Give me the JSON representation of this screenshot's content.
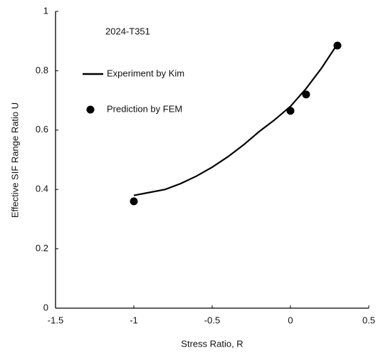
{
  "chart_data": {
    "type": "line",
    "annotation": "2024-T351",
    "x_label": "Stress Ratio, R",
    "y_label": "Effective SIF Range Ratio   U",
    "xlim": [
      -1.5,
      0.5
    ],
    "xticks": [
      -1.5,
      -1,
      -0.5,
      0,
      0.5
    ],
    "ylim": [
      0,
      1
    ],
    "yticks": [
      0,
      0.2,
      0.4,
      0.6,
      0.8,
      1
    ],
    "series": [
      {
        "name": "Experiment by Kim",
        "color": "#000000",
        "style": "line",
        "x": [
          -1,
          -0.9,
          -0.8,
          -0.7,
          -0.6,
          -0.5,
          -0.4,
          -0.3,
          -0.2,
          -0.1,
          0,
          0.1,
          0.2,
          0.3
        ],
        "values": [
          0.38,
          0.39,
          0.4,
          0.42,
          0.445,
          0.475,
          0.51,
          0.55,
          0.595,
          0.635,
          0.68,
          0.74,
          0.81,
          0.89
        ]
      },
      {
        "name": "Prediction by FEM",
        "color": "#000000",
        "style": "marker",
        "x": [
          -1,
          0,
          0.1,
          0.3
        ],
        "values": [
          0.36,
          0.665,
          0.72,
          0.885
        ]
      }
    ]
  }
}
